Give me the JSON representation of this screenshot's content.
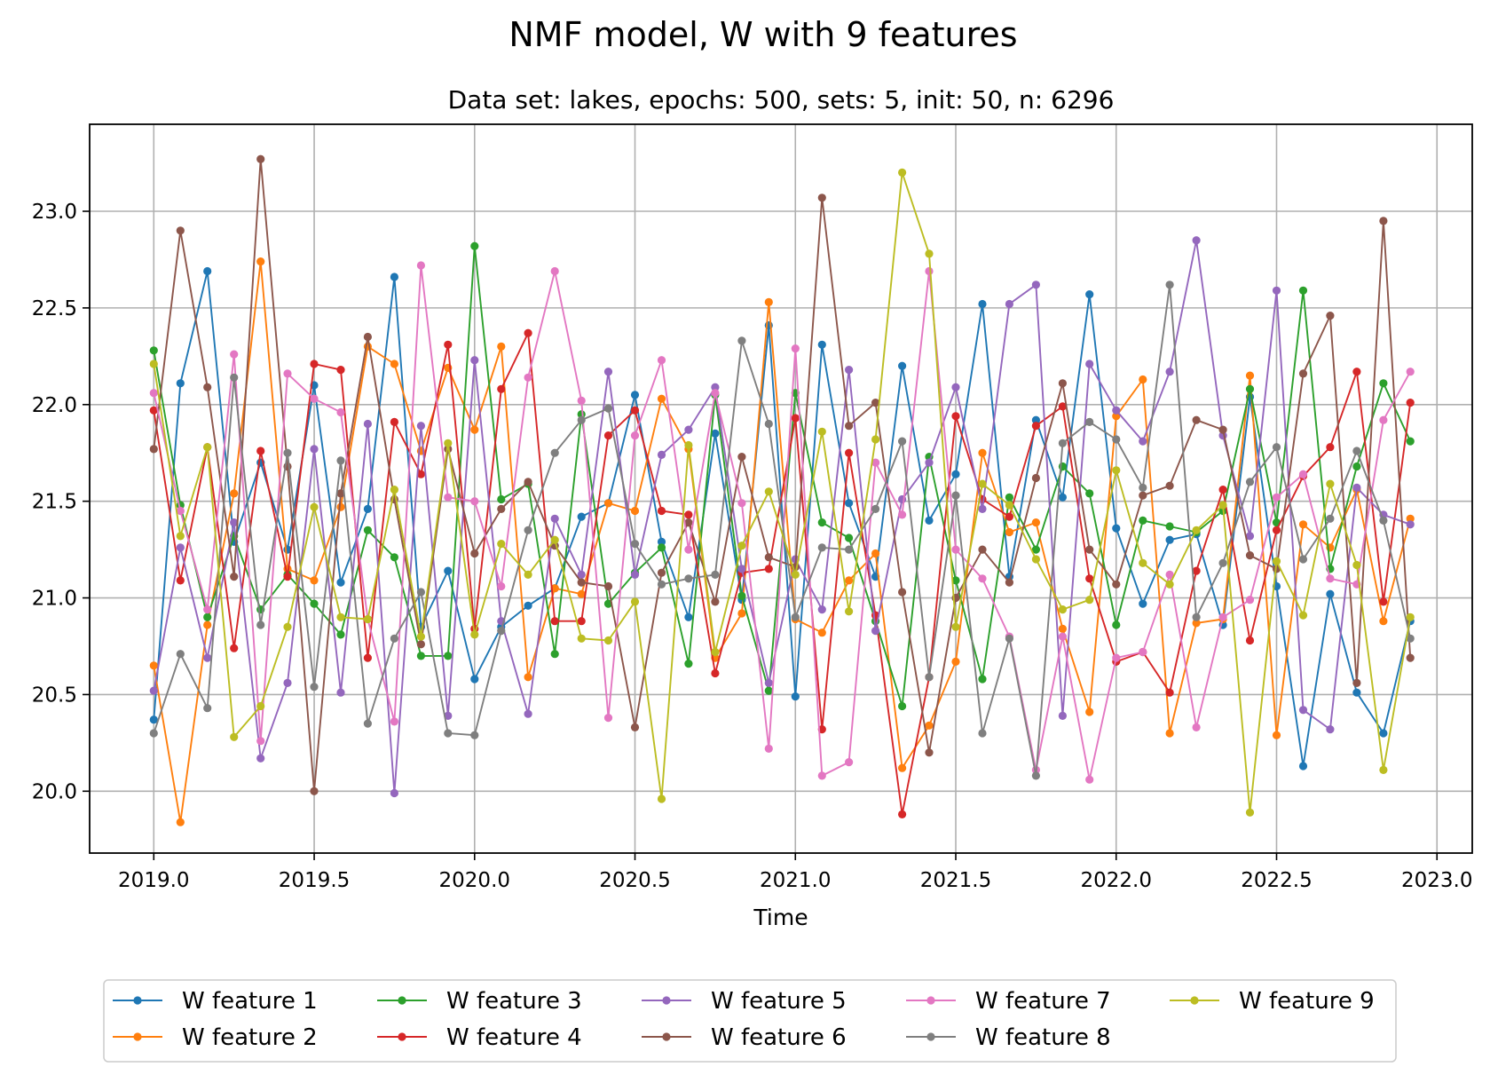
{
  "chart_data": {
    "type": "line",
    "title": "NMF model, W with 9 features",
    "subtitle": "Data set: lakes, epochs: 500, sets: 5, init: 50, n: 6296",
    "xlabel": "Time",
    "ylabel": "",
    "xlim": [
      2018.8,
      2023.11
    ],
    "ylim": [
      19.68,
      23.45
    ],
    "xticks": [
      2019.0,
      2019.5,
      2020.0,
      2020.5,
      2021.0,
      2021.5,
      2022.0,
      2022.5,
      2023.0
    ],
    "xtick_labels": [
      "2019.0",
      "2019.5",
      "2020.0",
      "2020.5",
      "2021.0",
      "2021.5",
      "2022.0",
      "2022.5",
      "2023.0"
    ],
    "yticks": [
      20.0,
      20.5,
      21.0,
      21.5,
      22.0,
      22.5,
      23.0
    ],
    "ytick_labels": [
      "20.0",
      "20.5",
      "21.0",
      "21.5",
      "22.0",
      "22.5",
      "23.0"
    ],
    "grid": true,
    "legend_position": "below the plot, 5 columns",
    "x": [
      2019.0,
      2019.083,
      2019.167,
      2019.25,
      2019.333,
      2019.417,
      2019.5,
      2019.583,
      2019.667,
      2019.75,
      2019.833,
      2019.917,
      2020.0,
      2020.083,
      2020.167,
      2020.25,
      2020.333,
      2020.417,
      2020.5,
      2020.583,
      2020.667,
      2020.75,
      2020.833,
      2020.917,
      2021.0,
      2021.083,
      2021.167,
      2021.25,
      2021.333,
      2021.417,
      2021.5,
      2021.583,
      2021.667,
      2021.75,
      2021.833,
      2021.917,
      2022.0,
      2022.083,
      2022.167,
      2022.25,
      2022.333,
      2022.417,
      2022.5,
      2022.583,
      2022.667,
      2022.75,
      2022.833,
      2022.917
    ],
    "series": [
      {
        "name": "W feature 1",
        "color": "#1f77b4",
        "values": [
          20.37,
          22.11,
          22.69,
          21.29,
          21.7,
          21.25,
          22.1,
          21.08,
          21.46,
          22.66,
          20.85,
          21.14,
          20.58,
          20.85,
          20.96,
          21.05,
          21.42,
          21.49,
          22.05,
          21.29,
          20.9,
          21.85,
          20.99,
          22.41,
          20.49,
          22.31,
          21.49,
          21.11,
          22.2,
          21.4,
          21.64,
          22.52,
          21.11,
          21.92,
          21.52,
          22.57,
          21.36,
          20.97,
          21.3,
          21.33,
          20.86,
          22.04,
          21.06,
          20.13,
          21.02,
          20.51,
          20.3,
          20.88
        ]
      },
      {
        "name": "W feature 2",
        "color": "#ff7f0e",
        "values": [
          20.65,
          19.84,
          20.86,
          21.54,
          22.74,
          21.15,
          21.09,
          21.47,
          22.3,
          22.21,
          21.76,
          22.19,
          21.87,
          22.3,
          20.59,
          21.05,
          21.02,
          21.49,
          21.45,
          22.03,
          21.77,
          20.69,
          20.92,
          22.53,
          20.89,
          20.82,
          21.09,
          21.23,
          20.12,
          20.34,
          20.67,
          21.75,
          21.34,
          21.39,
          20.84,
          20.41,
          21.94,
          22.13,
          20.3,
          20.87,
          20.89,
          22.15,
          20.29,
          21.38,
          21.26,
          21.56,
          20.88,
          21.41
        ]
      },
      {
        "name": "W feature 3",
        "color": "#2ca02c",
        "values": [
          22.28,
          21.48,
          20.9,
          21.32,
          20.94,
          21.12,
          20.97,
          20.81,
          21.35,
          21.21,
          20.7,
          20.7,
          22.82,
          21.51,
          21.59,
          20.71,
          21.95,
          20.97,
          21.13,
          21.26,
          20.66,
          22.05,
          21.01,
          20.52,
          22.06,
          21.39,
          21.31,
          20.88,
          20.44,
          21.73,
          21.09,
          20.58,
          21.52,
          21.25,
          21.68,
          21.54,
          20.86,
          21.4,
          21.37,
          21.34,
          21.45,
          22.08,
          21.39,
          22.59,
          21.15,
          21.68,
          22.11,
          21.81
        ]
      },
      {
        "name": "W feature 4",
        "color": "#d62728",
        "values": [
          21.97,
          21.09,
          21.78,
          20.74,
          21.76,
          21.11,
          22.21,
          22.18,
          20.69,
          21.91,
          21.64,
          22.31,
          20.84,
          22.08,
          22.37,
          20.88,
          20.88,
          21.84,
          21.97,
          21.45,
          21.43,
          20.61,
          21.13,
          21.15,
          21.93,
          20.32,
          21.75,
          20.91,
          19.88,
          20.59,
          21.94,
          21.51,
          21.42,
          21.89,
          21.99,
          21.1,
          20.67,
          20.72,
          20.51,
          21.14,
          21.56,
          20.78,
          21.35,
          21.63,
          21.78,
          22.17,
          20.98,
          22.01
        ]
      },
      {
        "name": "W feature 5",
        "color": "#9467bd",
        "values": [
          20.52,
          21.26,
          20.69,
          21.39,
          20.17,
          20.56,
          21.77,
          20.51,
          21.9,
          19.99,
          21.89,
          20.39,
          22.23,
          20.88,
          20.4,
          21.41,
          21.12,
          22.17,
          21.12,
          21.74,
          21.87,
          22.09,
          21.15,
          20.56,
          21.2,
          20.94,
          22.18,
          20.83,
          21.51,
          21.7,
          22.09,
          21.46,
          22.52,
          22.62,
          20.39,
          22.21,
          21.97,
          21.81,
          22.17,
          22.85,
          21.84,
          21.32,
          22.59,
          20.42,
          20.32,
          21.57,
          21.43,
          21.38
        ]
      },
      {
        "name": "W feature 6",
        "color": "#8c564b",
        "values": [
          21.77,
          22.9,
          22.09,
          21.11,
          23.27,
          21.68,
          20.0,
          21.54,
          22.35,
          21.51,
          20.76,
          21.77,
          21.23,
          21.46,
          21.6,
          21.27,
          21.08,
          21.06,
          20.33,
          21.13,
          21.39,
          20.98,
          21.73,
          21.21,
          21.16,
          23.07,
          21.89,
          22.01,
          21.03,
          20.2,
          21.0,
          21.25,
          21.08,
          21.62,
          22.11,
          21.25,
          21.07,
          21.53,
          21.58,
          21.92,
          21.87,
          21.22,
          21.15,
          22.16,
          22.46,
          20.56,
          22.95,
          20.69
        ]
      },
      {
        "name": "W feature 7",
        "color": "#e377c2",
        "values": [
          22.06,
          21.45,
          20.94,
          22.26,
          20.26,
          22.16,
          22.03,
          21.96,
          20.89,
          20.36,
          22.72,
          21.52,
          21.5,
          21.06,
          22.14,
          22.69,
          22.02,
          20.38,
          21.84,
          22.23,
          21.25,
          22.06,
          21.49,
          20.22,
          22.29,
          20.08,
          20.15,
          21.7,
          21.43,
          22.69,
          21.25,
          21.1,
          20.8,
          20.11,
          20.8,
          20.06,
          20.69,
          20.72,
          21.12,
          20.33,
          20.9,
          20.99,
          21.52,
          21.64,
          21.1,
          21.07,
          21.92,
          22.17
        ]
      },
      {
        "name": "W feature 8",
        "color": "#7f7f7f",
        "values": [
          20.3,
          20.71,
          20.43,
          22.14,
          20.86,
          21.75,
          20.54,
          21.71,
          20.35,
          20.79,
          21.03,
          20.3,
          20.29,
          20.83,
          21.35,
          21.75,
          21.92,
          21.98,
          21.28,
          21.07,
          21.1,
          21.12,
          22.33,
          21.9,
          20.9,
          21.26,
          21.25,
          21.46,
          21.81,
          20.59,
          21.53,
          20.3,
          20.79,
          20.08,
          21.8,
          21.91,
          21.82,
          21.57,
          22.62,
          20.9,
          21.18,
          21.6,
          21.78,
          21.2,
          21.41,
          21.76,
          21.4,
          20.79
        ]
      },
      {
        "name": "W feature 9",
        "color": "#bcbd22",
        "values": [
          22.21,
          21.32,
          21.78,
          20.28,
          20.44,
          20.85,
          21.47,
          20.9,
          20.89,
          21.56,
          20.8,
          21.8,
          20.81,
          21.28,
          21.12,
          21.3,
          20.79,
          20.78,
          20.98,
          19.96,
          21.79,
          20.72,
          21.27,
          21.55,
          21.12,
          21.86,
          20.93,
          21.82,
          23.2,
          22.78,
          20.85,
          21.59,
          21.48,
          21.2,
          20.94,
          20.99,
          21.66,
          21.18,
          21.07,
          21.35,
          21.48,
          19.89,
          21.19,
          20.91,
          21.59,
          21.17,
          20.11,
          20.9
        ]
      }
    ]
  }
}
